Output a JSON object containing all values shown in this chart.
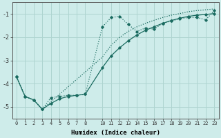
{
  "xlabel": "Humidex (Indice chaleur)",
  "background_color": "#ceecea",
  "grid_color": "#aed4d0",
  "line_color": "#1a6b60",
  "xlim": [
    -0.5,
    23.5
  ],
  "ylim": [
    -5.5,
    -0.5
  ],
  "xticks": [
    0,
    1,
    2,
    3,
    4,
    5,
    6,
    7,
    8,
    10,
    11,
    12,
    13,
    14,
    15,
    16,
    17,
    18,
    19,
    20,
    21,
    22,
    23
  ],
  "yticks": [
    -5,
    -4,
    -3,
    -2,
    -1
  ],
  "s1_x": [
    0,
    1,
    2,
    3,
    4,
    5,
    6,
    7,
    8,
    10,
    11,
    12,
    13,
    14,
    15,
    16,
    17,
    18,
    19,
    20,
    21,
    22,
    23
  ],
  "s1_y": [
    -3.7,
    -4.55,
    -4.7,
    -5.1,
    -4.6,
    -4.55,
    -4.5,
    -4.5,
    -4.45,
    -1.55,
    -1.15,
    -1.1,
    -1.45,
    -1.75,
    -1.6,
    -1.65,
    -1.4,
    -1.3,
    -1.2,
    -1.15,
    -1.15,
    -1.25,
    -0.85
  ],
  "s2_x": [
    0,
    1,
    2,
    3,
    10,
    11,
    12,
    13,
    14,
    15,
    16,
    17,
    18,
    19,
    20,
    21,
    22,
    23
  ],
  "s2_y": [
    -3.7,
    -4.55,
    -4.7,
    -5.1,
    -2.85,
    -2.35,
    -2.0,
    -1.75,
    -1.55,
    -1.4,
    -1.27,
    -1.15,
    -1.05,
    -0.98,
    -0.9,
    -0.85,
    -0.82,
    -0.78
  ],
  "s3_x": [
    0,
    1,
    2,
    3,
    4,
    5,
    6,
    7,
    8,
    10,
    11,
    12,
    13,
    14,
    15,
    16,
    17,
    18,
    19,
    20,
    21,
    22,
    23
  ],
  "s3_y": [
    -3.7,
    -4.55,
    -4.7,
    -5.1,
    -4.85,
    -4.65,
    -4.55,
    -4.5,
    -4.45,
    -3.3,
    -2.8,
    -2.45,
    -2.15,
    -1.9,
    -1.7,
    -1.55,
    -1.4,
    -1.28,
    -1.18,
    -1.1,
    -1.05,
    -1.02,
    -0.98
  ]
}
